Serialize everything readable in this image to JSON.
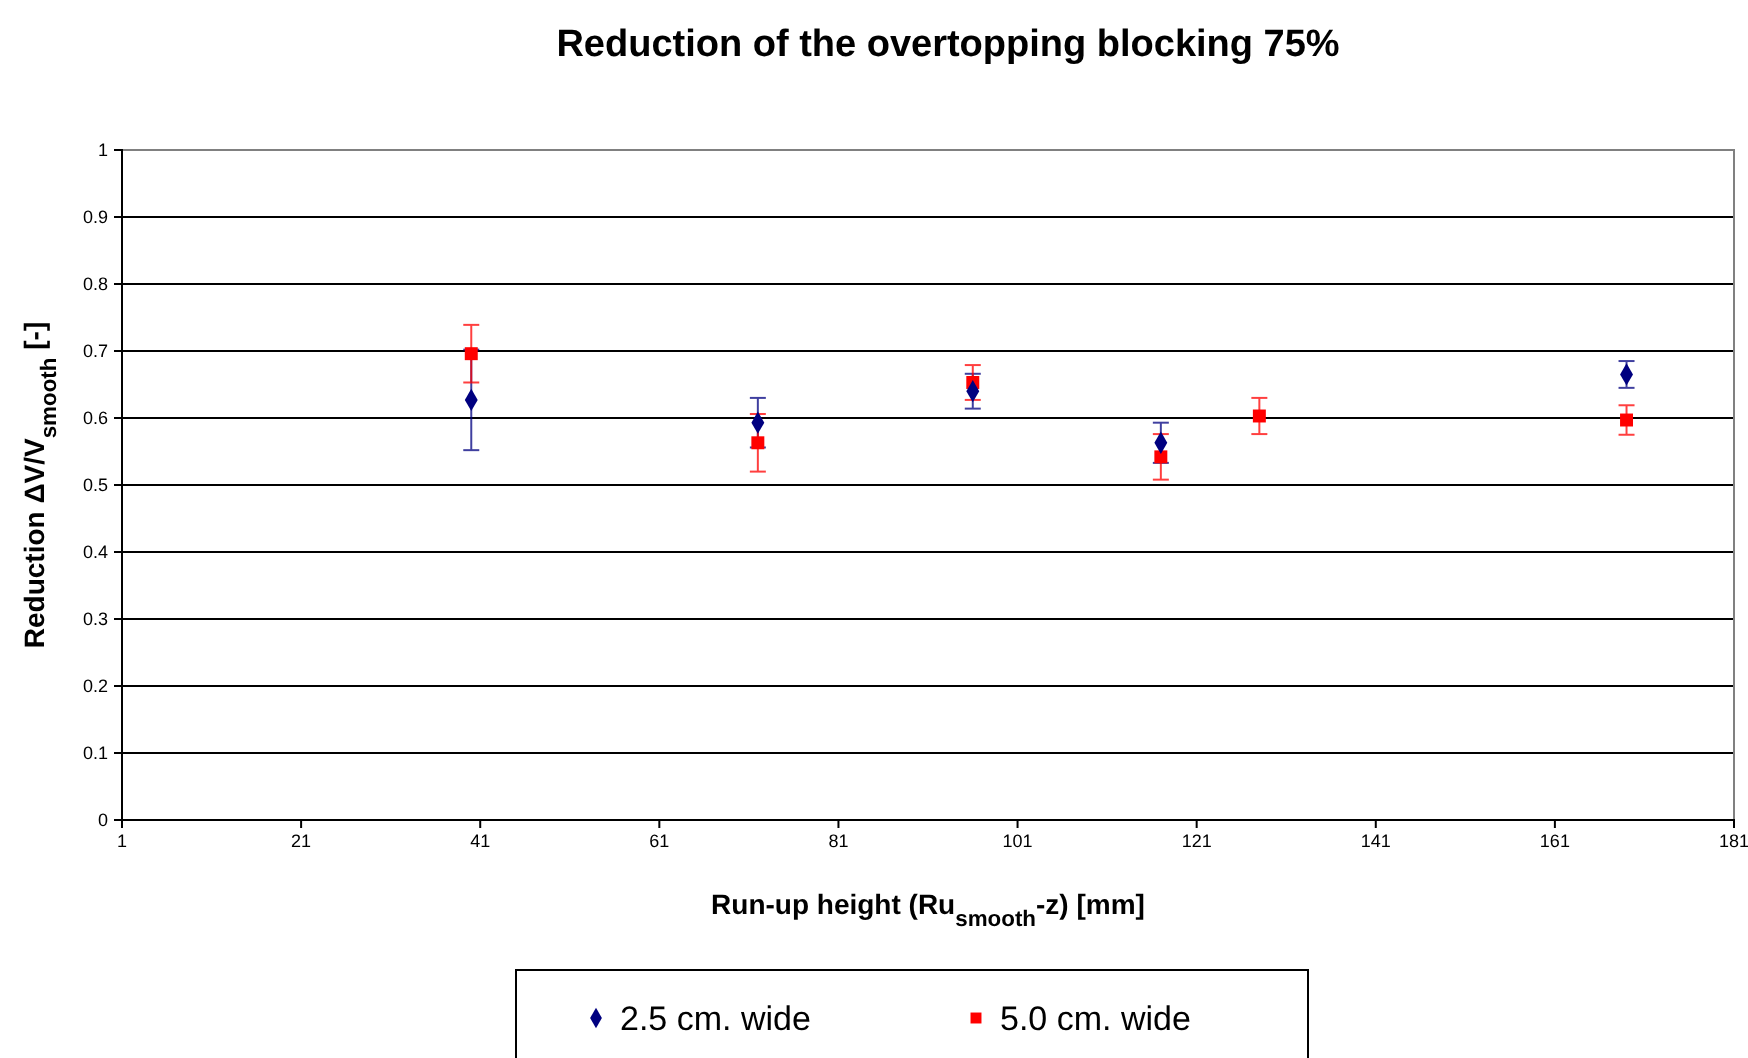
{
  "chart_data": {
    "type": "scatter",
    "title": "Reduction of the overtopping blocking 75%",
    "xlabel": "Run-up height (Ru$_{smooth}$-z)  [mm]",
    "ylabel": "Reduction ΔV/V$_{smooth}$ [-]",
    "xlim": [
      1,
      181
    ],
    "xticks": [
      1,
      21,
      41,
      61,
      81,
      101,
      121,
      141,
      161,
      181
    ],
    "ylim": [
      0,
      1
    ],
    "yticks": [
      0,
      0.1,
      0.2,
      0.3,
      0.4,
      0.5,
      0.6,
      0.7,
      0.8,
      0.9,
      1
    ],
    "grid": "y",
    "legend": "bottom",
    "series": [
      {
        "name": "2.5 cm. wide",
        "color": "#000080",
        "marker": "diamond",
        "x": [
          40,
          72,
          96,
          117,
          128,
          169
        ],
        "values": [
          0.627,
          0.593,
          0.64,
          0.563,
          null,
          0.665
        ],
        "errors": [
          0.075,
          0.037,
          0.026,
          0.03,
          null,
          0.02
        ]
      },
      {
        "name": "5.0 cm. wide",
        "color": "#ff0000",
        "marker": "square",
        "x": [
          40,
          72,
          96,
          117,
          128,
          169
        ],
        "values": [
          0.696,
          0.563,
          0.653,
          0.542,
          0.603,
          0.597
        ],
        "errors": [
          0.043,
          0.043,
          0.026,
          0.034,
          0.027,
          0.022
        ]
      }
    ]
  }
}
